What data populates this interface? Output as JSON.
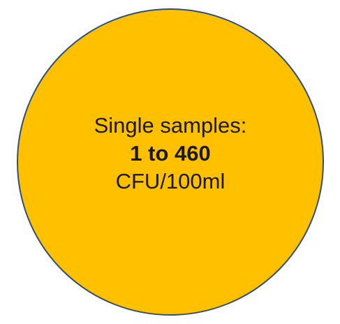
{
  "shape": {
    "fill_color": "#FFC000",
    "stroke_color": "#2F4F7A"
  },
  "text": {
    "line1": "Single samples:",
    "line2": "1 to 460",
    "line3": "CFU/100ml",
    "color": "#1a1a1a"
  }
}
